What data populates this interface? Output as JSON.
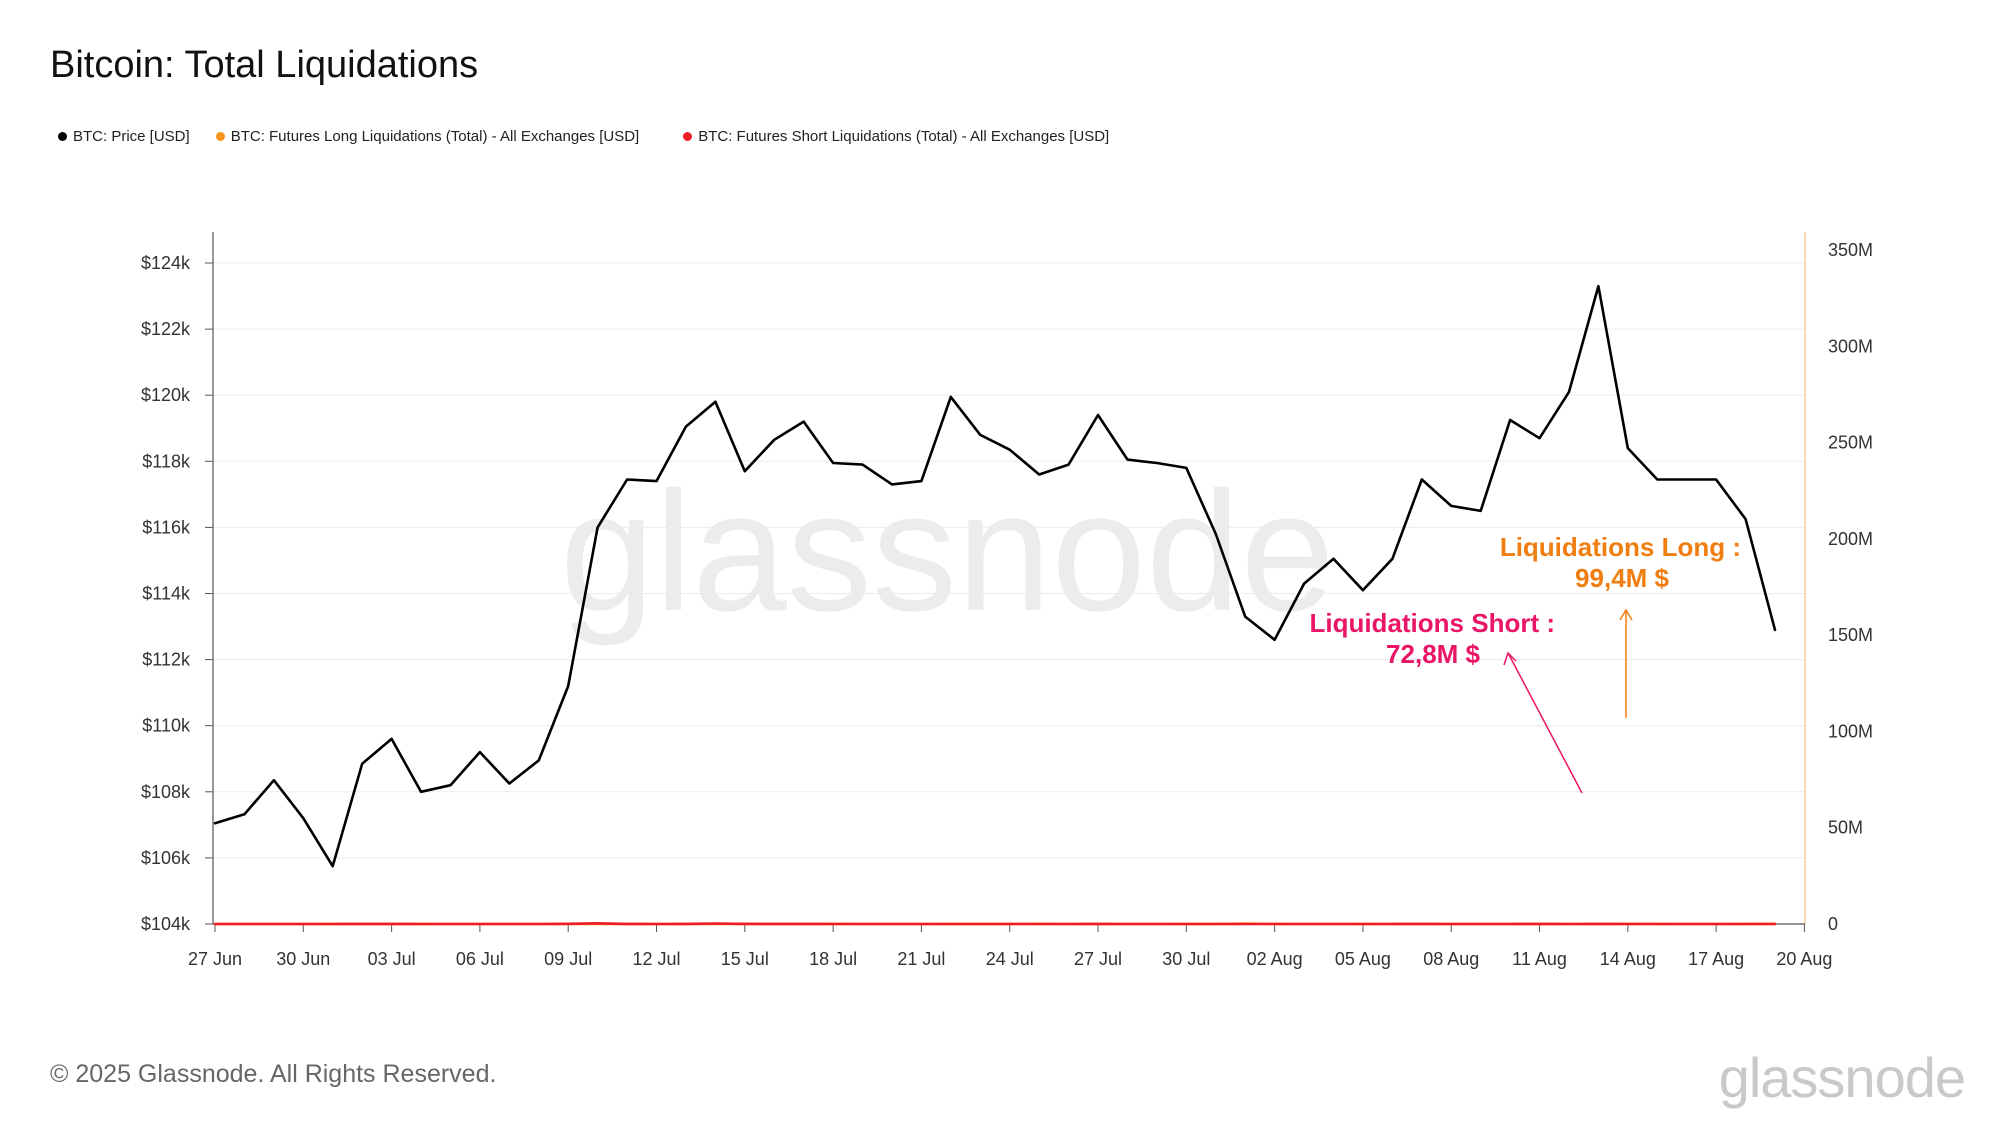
{
  "page": {
    "title": "Bitcoin: Total Liquidations"
  },
  "legend": [
    {
      "label": "BTC: Price [USD]",
      "color": "#000000"
    },
    {
      "label": "BTC: Futures Long Liquidations (Total) - All Exchanges [USD]",
      "color": "#f7931a"
    },
    {
      "label": "BTC: Futures Short Liquidations (Total) - All Exchanges [USD]",
      "color": "#ee1c25"
    }
  ],
  "footer": {
    "copyright": "© 2025 Glassnode. All Rights Reserved.",
    "brand": "glassnode",
    "watermark": "glassnode"
  },
  "annotations": {
    "long_line1": "Liquidations Long :",
    "long_line2": "99,4M $",
    "short_line1": "Liquidations Short :",
    "short_line2": "72,8M $",
    "long_color": "#f07d0f",
    "short_color": "#ea1567"
  },
  "chart_data": {
    "type": "line",
    "x": [
      "27 Jun",
      "28 Jun",
      "29 Jun",
      "30 Jun",
      "01 Jul",
      "02 Jul",
      "03 Jul",
      "04 Jul",
      "05 Jul",
      "06 Jul",
      "07 Jul",
      "08 Jul",
      "09 Jul",
      "10 Jul",
      "11 Jul",
      "12 Jul",
      "13 Jul",
      "14 Jul",
      "15 Jul",
      "16 Jul",
      "17 Jul",
      "18 Jul",
      "19 Jul",
      "20 Jul",
      "21 Jul",
      "22 Jul",
      "23 Jul",
      "24 Jul",
      "25 Jul",
      "26 Jul",
      "27 Jul",
      "28 Jul",
      "29 Jul",
      "30 Jul",
      "31 Jul",
      "01 Aug",
      "02 Aug",
      "03 Aug",
      "04 Aug",
      "05 Aug",
      "06 Aug",
      "07 Aug",
      "08 Aug",
      "09 Aug",
      "10 Aug",
      "11 Aug",
      "12 Aug",
      "13 Aug",
      "14 Aug",
      "15 Aug",
      "16 Aug",
      "17 Aug",
      "18 Aug",
      "19 Aug"
    ],
    "x_ticks": [
      "27 Jun",
      "30 Jun",
      "03 Jul",
      "06 Jul",
      "09 Jul",
      "12 Jul",
      "15 Jul",
      "18 Jul",
      "21 Jul",
      "24 Jul",
      "27 Jul",
      "30 Jul",
      "02 Aug",
      "05 Aug",
      "08 Aug",
      "11 Aug",
      "14 Aug",
      "17 Aug",
      "20 Aug"
    ],
    "y_left": {
      "range": [
        104000,
        124000
      ],
      "ticks": [
        104000,
        106000,
        108000,
        110000,
        112000,
        114000,
        116000,
        118000,
        120000,
        122000,
        124000
      ],
      "tick_labels": [
        "$104k",
        "$106k",
        "$108k",
        "$110k",
        "$112k",
        "$114k",
        "$116k",
        "$118k",
        "$120k",
        "$122k",
        "$124k"
      ]
    },
    "y_right": {
      "range": [
        0,
        350000000
      ],
      "ticks": [
        0,
        50000000,
        100000000,
        150000000,
        200000000,
        250000000,
        300000000,
        350000000
      ],
      "tick_labels": [
        "0",
        "50M",
        "100M",
        "150M",
        "200M",
        "250M",
        "300M",
        "350M"
      ]
    },
    "grid": true,
    "series": [
      {
        "name": "BTC: Price [USD]",
        "color": "#000000",
        "axis": "left",
        "values": [
          107050,
          107320,
          108350,
          107200,
          105750,
          108850,
          109600,
          108000,
          108200,
          109200,
          108250,
          108950,
          111200,
          116000,
          117450,
          117400,
          119050,
          119800,
          117700,
          118650,
          119200,
          117950,
          117900,
          117300,
          117400,
          119950,
          118800,
          118350,
          117600,
          117900,
          119400,
          118050,
          117950,
          117800,
          115800,
          113300,
          112600,
          114300,
          115050,
          114100,
          115050,
          117450,
          116650,
          116500,
          119250,
          118700,
          120100,
          123300,
          118400,
          117450,
          117450,
          117450,
          116250,
          112900
        ]
      },
      {
        "name": "BTC: Futures Long Liquidations (Total) - All Exchanges [USD]",
        "color": "#f7931a",
        "axis": "right",
        "values": [
          13000,
          0,
          3000,
          13000,
          40000,
          8000,
          9000,
          34000,
          0,
          2000,
          18000,
          7000,
          9000,
          8000,
          24000,
          12000,
          7000,
          35000,
          105000,
          16000,
          20000,
          101000,
          6000,
          15000,
          22000,
          28000,
          39000,
          26000,
          114000,
          1000,
          2000,
          25000,
          22000,
          46000,
          50000,
          175000,
          34000,
          6000,
          4000,
          34000,
          4000,
          6000,
          7000,
          4000,
          5000,
          70000,
          8000,
          10000,
          99400,
          40000,
          1000,
          12000,
          75000,
          78000
        ]
      },
      {
        "name": "BTC: Futures Short Liquidations (Total) - All Exchanges [USD]",
        "color": "#ee1c25",
        "axis": "right",
        "values": [
          8000,
          1000,
          25000,
          25000,
          3000,
          60000,
          28000,
          5000,
          1000,
          19000,
          3000,
          14000,
          98000,
          341000,
          75000,
          3000,
          29000,
          259000,
          26000,
          36000,
          36000,
          21000,
          2000,
          12000,
          20000,
          20000,
          10000,
          11000,
          21000,
          3000,
          26000,
          9000,
          10000,
          9000,
          6000,
          9000,
          5000,
          25000,
          12000,
          8000,
          13000,
          34000,
          9000,
          15000,
          25000,
          64000,
          18000,
          73000,
          24000,
          5000,
          0,
          5000,
          9000,
          2000
        ]
      }
    ]
  }
}
